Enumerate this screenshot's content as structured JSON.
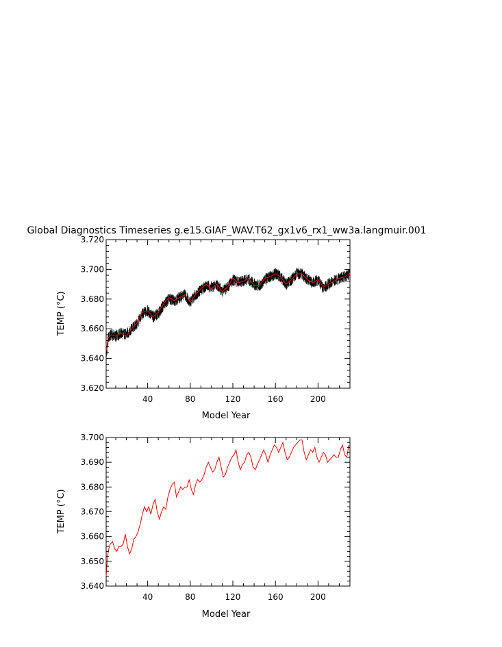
{
  "title": "Global Diagnostics Timeseries g.e15.GIAF_WAV.T62_gx1v6_rx1_ww3a.langmuir.001",
  "colors": {
    "monthly": "#000000",
    "annual": "#ff0000",
    "axis": "#000000",
    "background": "#ffffff"
  },
  "chart_data": [
    {
      "type": "line",
      "title": "Global Diagnostics Timeseries g.e15.GIAF_WAV.T62_gx1v6_rx1_ww3a.langmuir.001",
      "xlabel": "Model Year",
      "ylabel": "TEMP (°C)",
      "xlim": [
        1,
        230
      ],
      "ylim": [
        3.62,
        3.72
      ],
      "xticks": [
        40,
        80,
        120,
        160,
        200
      ],
      "xtick_labels": [
        "40",
        "80",
        "120",
        "160",
        "200"
      ],
      "yticks": [
        3.62,
        3.64,
        3.66,
        3.68,
        3.7,
        3.72
      ],
      "ytick_labels": [
        "3.620",
        "3.640",
        "3.660",
        "3.680",
        "3.700",
        "3.720"
      ],
      "grid": false,
      "series": [
        {
          "role": "monthly",
          "color": "#000000",
          "band_halfwidth": 0.004,
          "x": [
            1,
            3,
            6,
            10,
            15,
            20,
            25,
            30,
            35,
            40,
            45,
            50,
            55,
            60,
            65,
            70,
            75,
            80,
            85,
            90,
            95,
            100,
            105,
            110,
            115,
            120,
            125,
            130,
            135,
            140,
            145,
            150,
            155,
            160,
            165,
            170,
            175,
            180,
            185,
            190,
            195,
            200,
            205,
            210,
            215,
            220,
            225,
            230
          ],
          "y": [
            3.641,
            3.654,
            3.656,
            3.655,
            3.657,
            3.656,
            3.66,
            3.663,
            3.67,
            3.672,
            3.668,
            3.67,
            3.676,
            3.68,
            3.679,
            3.681,
            3.683,
            3.678,
            3.683,
            3.686,
            3.689,
            3.688,
            3.69,
            3.685,
            3.688,
            3.693,
            3.691,
            3.692,
            3.693,
            3.69,
            3.689,
            3.693,
            3.695,
            3.697,
            3.695,
            3.69,
            3.693,
            3.697,
            3.697,
            3.693,
            3.691,
            3.693,
            3.687,
            3.69,
            3.692,
            3.694,
            3.695,
            3.697
          ]
        },
        {
          "role": "annual",
          "color": "#ff0000",
          "x": [
            1,
            3,
            6,
            10,
            15,
            20,
            25,
            30,
            35,
            40,
            45,
            50,
            55,
            60,
            65,
            70,
            75,
            80,
            85,
            90,
            95,
            100,
            105,
            110,
            115,
            120,
            125,
            130,
            135,
            140,
            145,
            150,
            155,
            160,
            165,
            170,
            175,
            180,
            185,
            190,
            195,
            200,
            205,
            210,
            215,
            220,
            225,
            230
          ],
          "y": [
            3.645,
            3.654,
            3.656,
            3.655,
            3.657,
            3.655,
            3.66,
            3.664,
            3.671,
            3.672,
            3.668,
            3.671,
            3.677,
            3.681,
            3.679,
            3.681,
            3.683,
            3.678,
            3.683,
            3.687,
            3.69,
            3.687,
            3.69,
            3.685,
            3.688,
            3.694,
            3.691,
            3.692,
            3.694,
            3.689,
            3.689,
            3.694,
            3.695,
            3.697,
            3.695,
            3.69,
            3.693,
            3.697,
            3.697,
            3.693,
            3.691,
            3.693,
            3.688,
            3.69,
            3.692,
            3.694,
            3.695,
            3.697
          ]
        }
      ]
    },
    {
      "type": "line",
      "xlabel": "Model Year",
      "ylabel": "TEMP (°C)",
      "xlim": [
        1,
        230
      ],
      "ylim": [
        3.64,
        3.7
      ],
      "xticks": [
        40,
        80,
        120,
        160,
        200
      ],
      "xtick_labels": [
        "40",
        "80",
        "120",
        "160",
        "200"
      ],
      "yticks": [
        3.64,
        3.65,
        3.66,
        3.67,
        3.68,
        3.69,
        3.7
      ],
      "ytick_labels": [
        "3.640",
        "3.650",
        "3.660",
        "3.670",
        "3.680",
        "3.690",
        "3.700"
      ],
      "grid": false,
      "series": [
        {
          "role": "annual",
          "color": "#ff0000",
          "x": [
            1,
            2,
            3,
            4,
            5,
            7,
            9,
            11,
            13,
            15,
            17,
            19,
            21,
            23,
            25,
            27,
            29,
            31,
            33,
            35,
            37,
            39,
            41,
            43,
            45,
            47,
            49,
            51,
            53,
            55,
            57,
            59,
            61,
            63,
            65,
            67,
            69,
            71,
            73,
            75,
            77,
            79,
            81,
            83,
            85,
            87,
            89,
            91,
            93,
            95,
            97,
            99,
            101,
            103,
            105,
            107,
            109,
            111,
            113,
            115,
            117,
            119,
            121,
            123,
            125,
            127,
            129,
            131,
            133,
            135,
            137,
            139,
            141,
            143,
            145,
            147,
            149,
            151,
            153,
            155,
            157,
            159,
            161,
            163,
            165,
            167,
            169,
            171,
            173,
            175,
            177,
            179,
            181,
            183,
            185,
            187,
            189,
            191,
            193,
            195,
            197,
            199,
            201,
            203,
            205,
            207,
            209,
            211,
            213,
            215,
            217,
            219,
            221,
            223,
            225,
            227,
            229
          ],
          "y": [
            3.644,
            3.65,
            3.654,
            3.656,
            3.657,
            3.658,
            3.655,
            3.654,
            3.656,
            3.656,
            3.657,
            3.661,
            3.656,
            3.653,
            3.655,
            3.659,
            3.66,
            3.662,
            3.665,
            3.669,
            3.672,
            3.67,
            3.672,
            3.669,
            3.673,
            3.675,
            3.67,
            3.667,
            3.67,
            3.672,
            3.671,
            3.676,
            3.679,
            3.681,
            3.682,
            3.676,
            3.678,
            3.68,
            3.679,
            3.68,
            3.68,
            3.683,
            3.679,
            3.677,
            3.681,
            3.683,
            3.682,
            3.683,
            3.685,
            3.688,
            3.69,
            3.688,
            3.686,
            3.687,
            3.69,
            3.692,
            3.688,
            3.684,
            3.685,
            3.688,
            3.69,
            3.692,
            3.693,
            3.695,
            3.69,
            3.687,
            3.689,
            3.69,
            3.693,
            3.694,
            3.692,
            3.688,
            3.687,
            3.689,
            3.691,
            3.693,
            3.695,
            3.693,
            3.69,
            3.693,
            3.695,
            3.697,
            3.696,
            3.694,
            3.696,
            3.698,
            3.694,
            3.691,
            3.692,
            3.694,
            3.696,
            3.697,
            3.698,
            3.699,
            3.699,
            3.694,
            3.691,
            3.693,
            3.695,
            3.694,
            3.696,
            3.692,
            3.69,
            3.692,
            3.694,
            3.693,
            3.69,
            3.691,
            3.692,
            3.693,
            3.692,
            3.692,
            3.695,
            3.697,
            3.693,
            3.692,
            3.697
          ]
        }
      ]
    }
  ]
}
